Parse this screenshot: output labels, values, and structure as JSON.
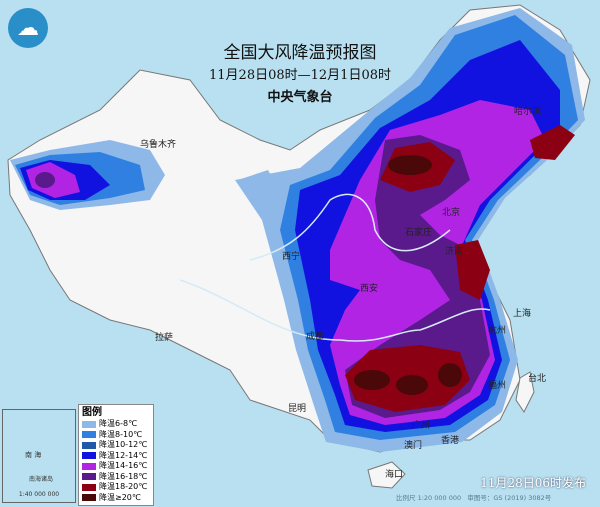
{
  "header": {
    "title": "全国大风降温预报图",
    "period": "11月28日08时—12月1日08时",
    "agency": "中央气象台"
  },
  "legend": {
    "title": "图例",
    "items": [
      {
        "label": "降温6-8℃",
        "color": "#8db8e8"
      },
      {
        "label": "降温8-10℃",
        "color": "#2f80e0"
      },
      {
        "label": "降温10-12℃",
        "color": "#1f5aa8"
      },
      {
        "label": "降温12-14℃",
        "color": "#1212e0"
      },
      {
        "label": "降温14-16℃",
        "color": "#b224e4"
      },
      {
        "label": "降温16-18℃",
        "color": "#5a1a8c"
      },
      {
        "label": "降温18-20℃",
        "color": "#8c0014"
      },
      {
        "label": "降温≥20℃",
        "color": "#4a0808"
      }
    ]
  },
  "cities": [
    {
      "name": "乌鲁木齐"
    },
    {
      "name": "拉萨"
    },
    {
      "name": "西宁"
    },
    {
      "name": "成都"
    },
    {
      "name": "昆明"
    },
    {
      "name": "西安"
    },
    {
      "name": "哈尔滨"
    },
    {
      "name": "北京"
    },
    {
      "name": "石家庄"
    },
    {
      "name": "济南"
    },
    {
      "name": "上海"
    },
    {
      "name": "杭州"
    },
    {
      "name": "福州"
    },
    {
      "name": "台北"
    },
    {
      "name": "广州"
    },
    {
      "name": "香港"
    },
    {
      "name": "澳门"
    },
    {
      "name": "海口"
    }
  ],
  "inset": {
    "sea_label": "南 海",
    "scale": "1:40 000 000",
    "islands": "南海诸岛"
  },
  "footer": {
    "published": "11月28日06时发布",
    "scale": "比例尺 1:20 000 000",
    "map_no": "审图号：GS (2019) 3082号"
  },
  "colors": {
    "sea": "#b8e0f0",
    "land": "#f6f6f6"
  },
  "icons": {
    "logo": "cma-logo"
  }
}
